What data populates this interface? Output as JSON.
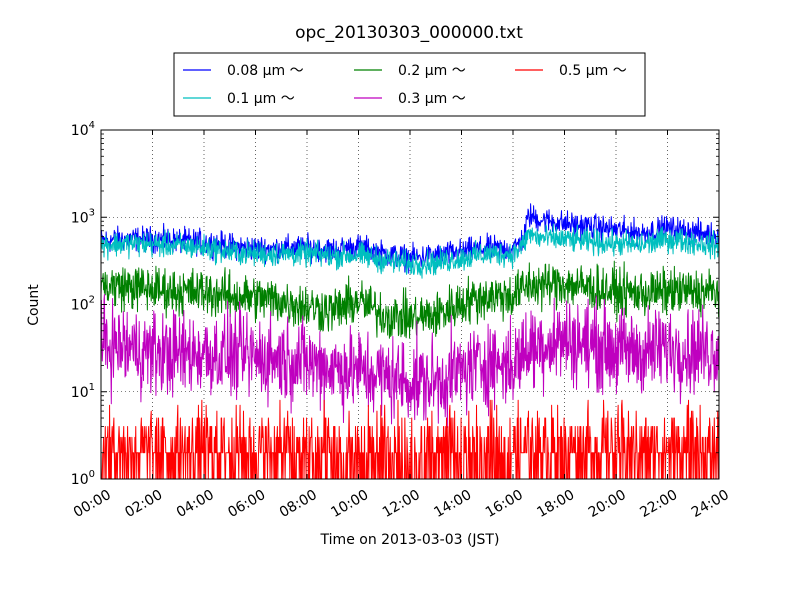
{
  "chart_data": {
    "type": "line",
    "title": "opc_20130303_000000.txt",
    "xlabel": "Time on 2013-03-03 (JST)",
    "ylabel": "Count",
    "x_unit": "hours",
    "xlim": [
      0,
      24
    ],
    "ylim": [
      1,
      10000
    ],
    "y_scale": "log",
    "grid": true,
    "legend_position": "top-center",
    "x_ticks": [
      {
        "x": 0,
        "label": "00:00"
      },
      {
        "x": 2,
        "label": "02:00"
      },
      {
        "x": 4,
        "label": "04:00"
      },
      {
        "x": 6,
        "label": "06:00"
      },
      {
        "x": 8,
        "label": "08:00"
      },
      {
        "x": 10,
        "label": "10:00"
      },
      {
        "x": 12,
        "label": "12:00"
      },
      {
        "x": 14,
        "label": "14:00"
      },
      {
        "x": 16,
        "label": "16:00"
      },
      {
        "x": 18,
        "label": "18:00"
      },
      {
        "x": 20,
        "label": "20:00"
      },
      {
        "x": 22,
        "label": "22:00"
      },
      {
        "x": 24,
        "label": "24:00"
      }
    ],
    "y_ticks": [
      {
        "y": 1,
        "base": "10",
        "exp": "0"
      },
      {
        "y": 10,
        "base": "10",
        "exp": "1"
      },
      {
        "y": 100,
        "base": "10",
        "exp": "2"
      },
      {
        "y": 1000,
        "base": "10",
        "exp": "3"
      },
      {
        "y": 10000,
        "base": "10",
        "exp": "4"
      }
    ],
    "x": [
      0,
      1,
      2,
      3,
      4,
      5,
      6,
      7,
      8,
      9,
      10,
      11,
      12,
      13,
      14,
      15,
      16,
      16.4,
      16.6,
      17,
      18,
      19,
      20,
      21,
      22,
      23,
      24
    ],
    "series": [
      {
        "name": "0.08 μm ～",
        "color": "#0000ff",
        "values": [
          540,
          560,
          560,
          540,
          520,
          470,
          440,
          440,
          450,
          420,
          460,
          380,
          340,
          360,
          400,
          440,
          430,
          560,
          1050,
          950,
          850,
          780,
          720,
          660,
          750,
          680,
          600
        ]
      },
      {
        "name": "0.1 μm ～",
        "color": "#00bfbf",
        "values": [
          480,
          500,
          490,
          470,
          450,
          400,
          380,
          380,
          380,
          360,
          370,
          320,
          290,
          300,
          340,
          380,
          380,
          480,
          650,
          580,
          560,
          520,
          500,
          480,
          560,
          520,
          460
        ]
      },
      {
        "name": "0.2 μm ～",
        "color": "#008000",
        "values": [
          165,
          160,
          150,
          140,
          140,
          125,
          120,
          110,
          95,
          85,
          110,
          75,
          70,
          75,
          105,
          125,
          125,
          150,
          170,
          165,
          175,
          155,
          140,
          135,
          140,
          140,
          140
        ]
      },
      {
        "name": "0.3 μm ～",
        "color": "#bf00bf",
        "values": [
          35,
          32,
          28,
          27,
          28,
          26,
          25,
          24,
          22,
          19,
          17,
          15,
          13,
          13,
          17,
          22,
          20,
          28,
          32,
          35,
          40,
          35,
          30,
          28,
          32,
          30,
          30
        ]
      },
      {
        "name": "0.5 μm ～",
        "color": "#ff0000",
        "values": [
          2,
          2,
          2,
          2,
          2,
          2,
          2,
          2,
          1.5,
          1.5,
          1.5,
          1.5,
          1.5,
          1.5,
          1.5,
          1.5,
          1.8,
          2,
          2.5,
          2.5,
          3,
          3,
          2.5,
          2.5,
          2.5,
          2.5,
          2.5
        ]
      }
    ]
  }
}
